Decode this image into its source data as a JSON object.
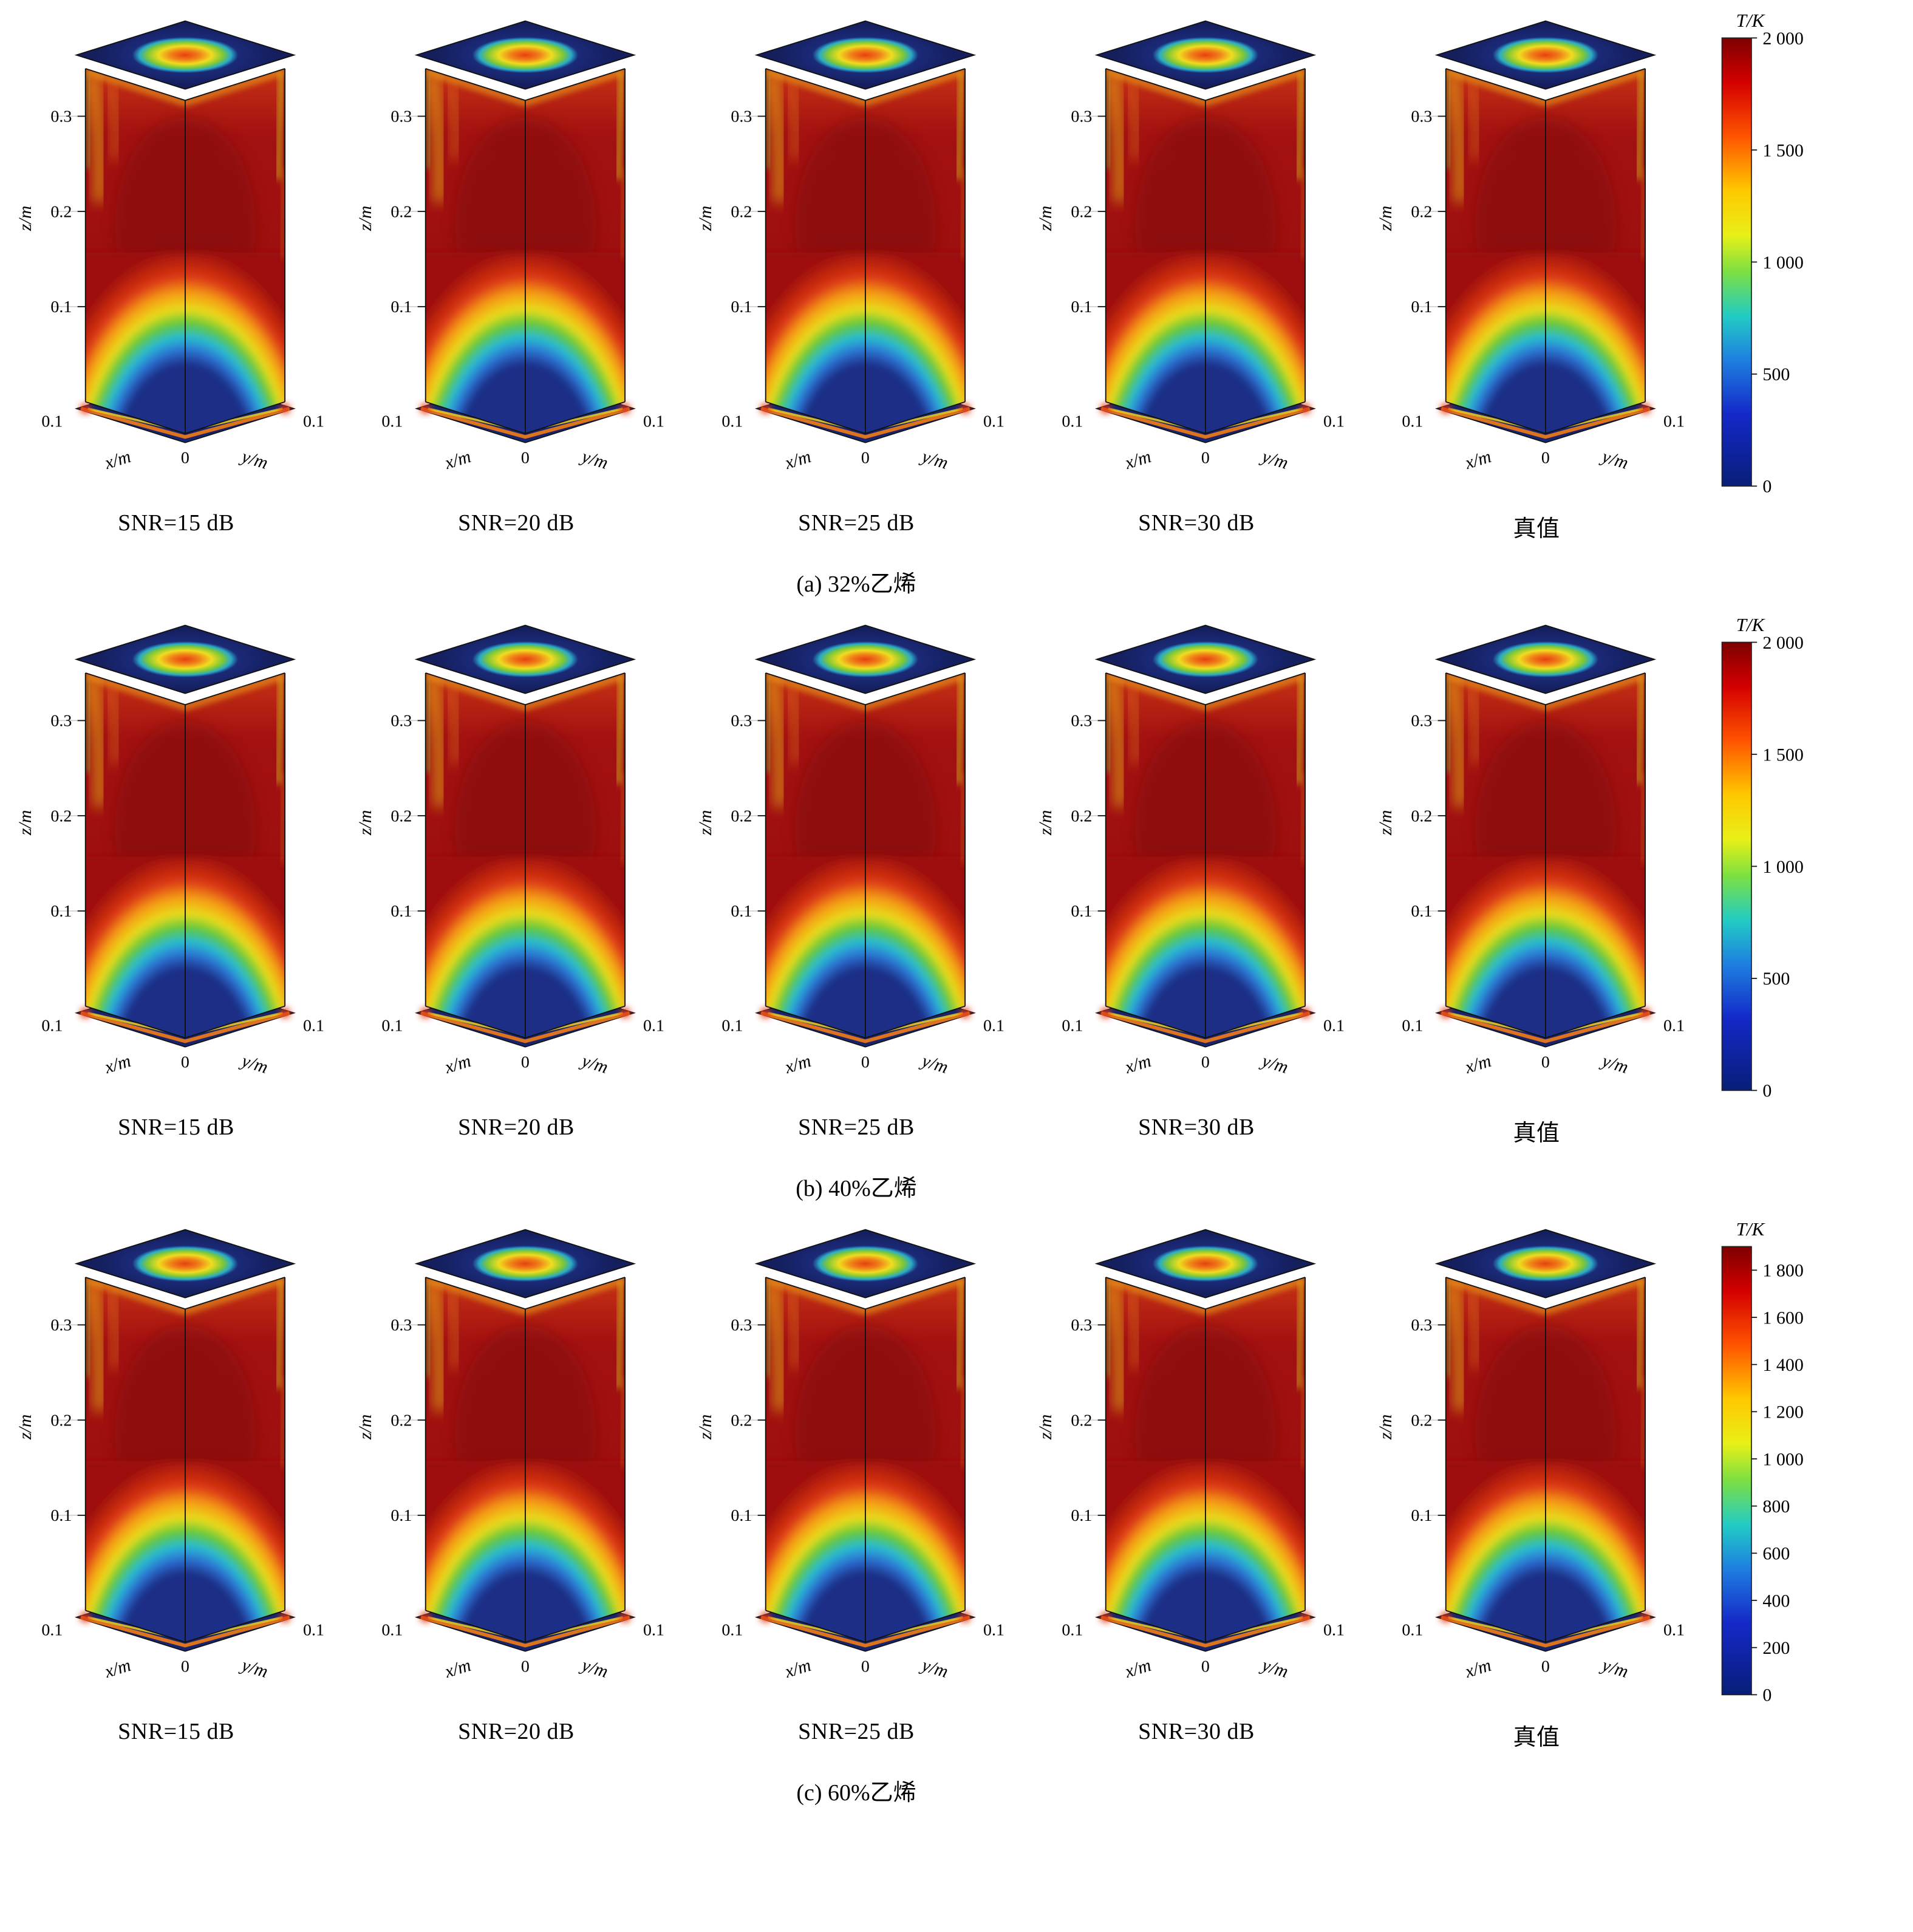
{
  "axes": {
    "z_label": "z/m",
    "x_label": "x/m",
    "y_label": "y/m",
    "z_ticks": [
      "0.3",
      "0.2",
      "0.1"
    ],
    "x_tick_left": "0.1",
    "origin_tick": "0",
    "y_tick_right": "0.1"
  },
  "rows": [
    {
      "caption": "(a) 32%乙烯",
      "columns": [
        "SNR=15 dB",
        "SNR=20 dB",
        "SNR=25 dB",
        "SNR=30 dB",
        "真值"
      ],
      "colorbar": {
        "title": "T/K",
        "max": 2000,
        "values": [
          2000,
          1500,
          1000,
          500,
          0
        ],
        "ticks": [
          "2 000",
          "1 500",
          "1 000",
          "500",
          "0"
        ]
      }
    },
    {
      "caption": "(b) 40%乙烯",
      "columns": [
        "SNR=15 dB",
        "SNR=20 dB",
        "SNR=25 dB",
        "SNR=30 dB",
        "真值"
      ],
      "colorbar": {
        "title": "T/K",
        "max": 2000,
        "values": [
          2000,
          1500,
          1000,
          500,
          0
        ],
        "ticks": [
          "2 000",
          "1 500",
          "1 000",
          "500",
          "0"
        ]
      }
    },
    {
      "caption": "(c) 60%乙烯",
      "columns": [
        "SNR=15 dB",
        "SNR=20 dB",
        "SNR=25 dB",
        "SNR=30 dB",
        "真值"
      ],
      "colorbar": {
        "title": "T/K",
        "max": 1900,
        "values": [
          1800,
          1600,
          1400,
          1200,
          1000,
          800,
          600,
          400,
          200,
          0
        ],
        "ticks": [
          "1 800",
          "1 600",
          "1 400",
          "1 200",
          "1 000",
          "800",
          "600",
          "400",
          "200",
          "0"
        ]
      }
    }
  ],
  "chart_data": {
    "type": "heatmap",
    "description": "3D volumetric flame temperature field reconstructions (jet colormap). Columns compare reconstructions at increasing signal-to-noise ratio against the ground truth (真值); rows are ethylene volume fractions 32%, 40% and 60%. Each cube shows a hot column (~1800-2000 K, dark red) with a cold core (~0-300 K, dark blue) at the bottom center, a ring-shaped hot zone on the top slice, and a mostly cold bottom slice.",
    "colormap": "jet",
    "axes": {
      "x": {
        "label": "x/m",
        "ticks": [
          0.1,
          0
        ]
      },
      "y": {
        "label": "y/m",
        "ticks": [
          0,
          0.1
        ]
      },
      "z": {
        "label": "z/m",
        "ticks": [
          0.1,
          0.2,
          0.3
        ],
        "range": [
          0,
          0.35
        ]
      }
    },
    "panels": [
      {
        "group": "(a) 32%乙烯",
        "series": [
          "SNR=15 dB",
          "SNR=20 dB",
          "SNR=25 dB",
          "SNR=30 dB",
          "真值"
        ],
        "colorbar": {
          "label": "T/K",
          "min": 0,
          "max": 2000,
          "ticks": [
            0,
            500,
            1000,
            1500,
            2000
          ]
        }
      },
      {
        "group": "(b) 40%乙烯",
        "series": [
          "SNR=15 dB",
          "SNR=20 dB",
          "SNR=25 dB",
          "SNR=30 dB",
          "真值"
        ],
        "colorbar": {
          "label": "T/K",
          "min": 0,
          "max": 2000,
          "ticks": [
            0,
            500,
            1000,
            1500,
            2000
          ]
        }
      },
      {
        "group": "(c) 60%乙烯",
        "series": [
          "SNR=15 dB",
          "SNR=20 dB",
          "SNR=25 dB",
          "SNR=30 dB",
          "真值"
        ],
        "colorbar": {
          "label": "T/K",
          "min": 0,
          "max": 1900,
          "ticks": [
            0,
            200,
            400,
            600,
            800,
            1000,
            1200,
            1400,
            1600,
            1800
          ]
        }
      }
    ]
  }
}
